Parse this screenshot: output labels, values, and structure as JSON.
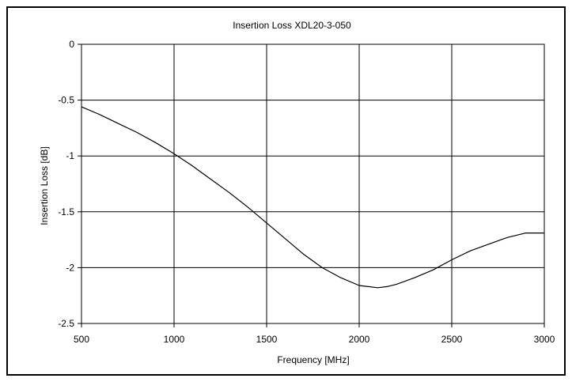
{
  "chart_data": {
    "type": "line",
    "title": "Insertion Loss XDL20-3-050",
    "xlabel": "Frequency [MHz]",
    "ylabel": "Insertion Loss [dB]",
    "xlim": [
      500,
      3000
    ],
    "ylim": [
      -2.5,
      0
    ],
    "x_ticks": [
      "500",
      "1000",
      "1500",
      "2000",
      "2500",
      "3000"
    ],
    "y_ticks": [
      "0",
      "-0.5",
      "-1",
      "-1.5",
      "-2",
      "-2.5"
    ],
    "grid": true,
    "legend": "none",
    "series": [
      {
        "color": "#000000",
        "x": [
          500,
          600,
          700,
          800,
          900,
          1000,
          1100,
          1200,
          1300,
          1400,
          1500,
          1600,
          1700,
          1800,
          1900,
          2000,
          2050,
          2100,
          2150,
          2200,
          2300,
          2400,
          2500,
          2600,
          2700,
          2800,
          2900,
          3000
        ],
        "y": [
          -0.56,
          -0.63,
          -0.71,
          -0.79,
          -0.88,
          -0.98,
          -1.09,
          -1.21,
          -1.33,
          -1.46,
          -1.6,
          -1.74,
          -1.88,
          -2.0,
          -2.09,
          -2.16,
          -2.17,
          -2.18,
          -2.17,
          -2.15,
          -2.09,
          -2.02,
          -1.93,
          -1.85,
          -1.79,
          -1.73,
          -1.69,
          -1.69
        ]
      }
    ]
  }
}
